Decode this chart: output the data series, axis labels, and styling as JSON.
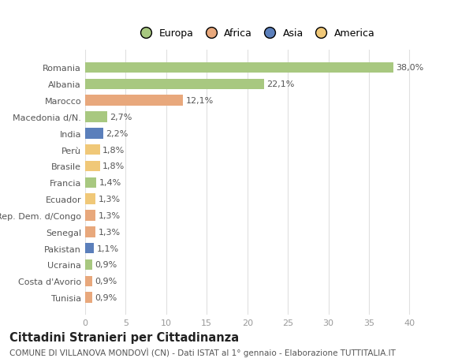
{
  "categories": [
    "Tunisia",
    "Costa d'Avorio",
    "Ucraina",
    "Pakistan",
    "Senegal",
    "Rep. Dem. d/Congo",
    "Ecuador",
    "Francia",
    "Brasile",
    "Perù",
    "India",
    "Macedonia d/N.",
    "Marocco",
    "Albania",
    "Romania"
  ],
  "values": [
    0.9,
    0.9,
    0.9,
    1.1,
    1.3,
    1.3,
    1.3,
    1.4,
    1.8,
    1.8,
    2.2,
    2.7,
    12.1,
    22.1,
    38.0
  ],
  "labels": [
    "0,9%",
    "0,9%",
    "0,9%",
    "1,1%",
    "1,3%",
    "1,3%",
    "1,3%",
    "1,4%",
    "1,8%",
    "1,8%",
    "2,2%",
    "2,7%",
    "12,1%",
    "22,1%",
    "38,0%"
  ],
  "colors": [
    "#e8a87c",
    "#e8a87c",
    "#a8c880",
    "#5b7fbb",
    "#e8a87c",
    "#e8a87c",
    "#f0c878",
    "#a8c880",
    "#f0c878",
    "#f0c878",
    "#5b7fbb",
    "#a8c880",
    "#e8a87c",
    "#a8c880",
    "#a8c880"
  ],
  "legend_labels": [
    "Europa",
    "Africa",
    "Asia",
    "America"
  ],
  "legend_colors": [
    "#a8c880",
    "#e8a87c",
    "#5b7fbb",
    "#f0c878"
  ],
  "title": "Cittadini Stranieri per Cittadinanza",
  "subtitle": "COMUNE DI VILLANOVA MONDOVÌ (CN) - Dati ISTAT al 1° gennaio - Elaborazione TUTTITALIA.IT",
  "xlim": [
    0,
    42
  ],
  "xticks": [
    0,
    5,
    10,
    15,
    20,
    25,
    30,
    35,
    40
  ],
  "bg_color": "#ffffff",
  "grid_color": "#e0e0e0",
  "bar_height": 0.65,
  "label_fontsize": 8,
  "title_fontsize": 10.5,
  "subtitle_fontsize": 7.5,
  "tick_fontsize": 8,
  "legend_fontsize": 9
}
